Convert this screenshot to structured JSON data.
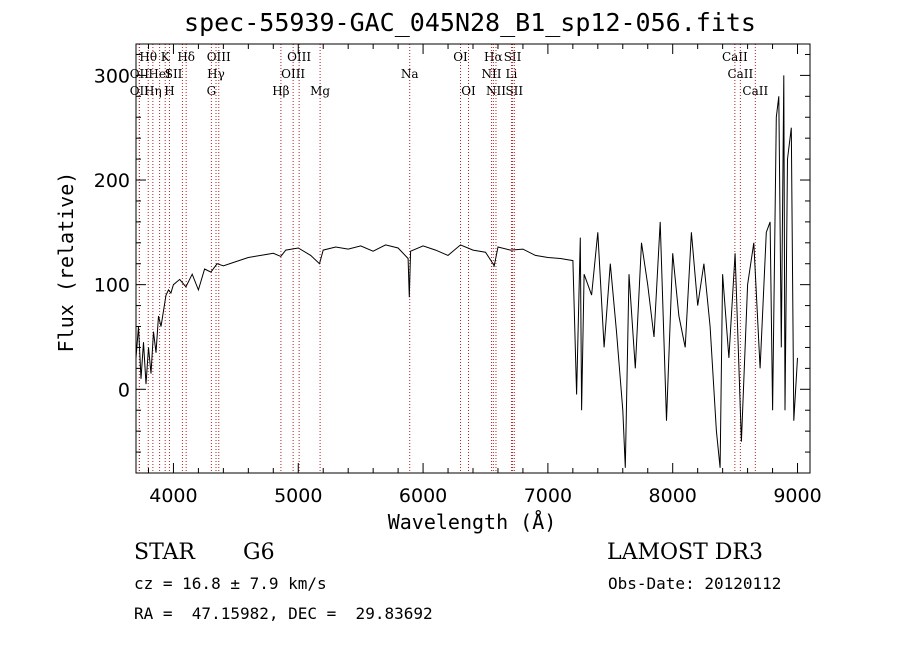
{
  "chart_data": {
    "type": "line",
    "title": "spec-55939-GAC_045N28_B1_sp12-056.fits",
    "xlabel": "Wavelength (Å)",
    "ylabel": "Flux (relative)",
    "xlim": [
      3700,
      9100
    ],
    "ylim": [
      -80,
      330
    ],
    "xticks": [
      {
        "value": 4000,
        "label": "4000"
      },
      {
        "value": 5000,
        "label": "5000"
      },
      {
        "value": 6000,
        "label": "6000"
      },
      {
        "value": 7000,
        "label": "7000"
      },
      {
        "value": 8000,
        "label": "8000"
      },
      {
        "value": 9000,
        "label": "9000"
      }
    ],
    "yticks": [
      {
        "value": 0,
        "label": "0"
      },
      {
        "value": 100,
        "label": "100"
      },
      {
        "value": 200,
        "label": "200"
      },
      {
        "value": 300,
        "label": "300"
      }
    ],
    "series": [
      {
        "name": "flux",
        "x": [
          3700,
          3720,
          3740,
          3760,
          3780,
          3800,
          3820,
          3840,
          3860,
          3880,
          3900,
          3920,
          3940,
          3960,
          3980,
          4000,
          4050,
          4100,
          4150,
          4200,
          4250,
          4300,
          4350,
          4400,
          4500,
          4600,
          4700,
          4800,
          4860,
          4900,
          5000,
          5100,
          5170,
          5200,
          5300,
          5400,
          5500,
          5600,
          5700,
          5800,
          5880,
          5890,
          5900,
          6000,
          6100,
          6200,
          6300,
          6400,
          6500,
          6560,
          6570,
          6600,
          6700,
          6800,
          6900,
          7000,
          7100,
          7200,
          7230,
          7260,
          7270,
          7290,
          7350,
          7400,
          7450,
          7500,
          7550,
          7600,
          7620,
          7650,
          7700,
          7750,
          7800,
          7850,
          7900,
          7950,
          8000,
          8050,
          8100,
          8150,
          8200,
          8250,
          8300,
          8350,
          8380,
          8400,
          8450,
          8500,
          8550,
          8600,
          8650,
          8700,
          8750,
          8780,
          8800,
          8830,
          8850,
          8870,
          8890,
          8900,
          8920,
          8950,
          8970,
          9000
        ],
        "y": [
          30,
          60,
          10,
          45,
          5,
          40,
          15,
          55,
          35,
          70,
          60,
          75,
          90,
          95,
          92,
          100,
          105,
          98,
          110,
          95,
          115,
          112,
          120,
          118,
          122,
          126,
          128,
          130,
          127,
          133,
          135,
          128,
          120,
          133,
          136,
          134,
          137,
          132,
          138,
          135,
          125,
          88,
          132,
          137,
          133,
          128,
          138,
          133,
          131,
          120,
          118,
          136,
          133,
          134,
          128,
          126,
          125,
          123,
          -5,
          145,
          -20,
          110,
          90,
          150,
          40,
          120,
          55,
          -20,
          -75,
          110,
          20,
          140,
          100,
          50,
          160,
          -30,
          130,
          70,
          40,
          150,
          80,
          120,
          60,
          -40,
          -75,
          110,
          30,
          130,
          -50,
          100,
          140,
          20,
          150,
          160,
          -20,
          260,
          280,
          40,
          300,
          -20,
          220,
          250,
          -30,
          30
        ]
      }
    ],
    "lines": [
      {
        "label": "Hθ",
        "x": 3798,
        "row": 0,
        "ha": "center"
      },
      {
        "label": "OII",
        "x": 3727,
        "row": 1,
        "ha": "center"
      },
      {
        "label": "OII",
        "x": 3727,
        "row": 2,
        "ha": "center"
      },
      {
        "label": "Hη",
        "x": 3835,
        "row": 2,
        "ha": "center"
      },
      {
        "label": "HeI",
        "x": 3889,
        "row": 1,
        "ha": "center"
      },
      {
        "label": "K",
        "x": 3934,
        "row": 0,
        "ha": "center"
      },
      {
        "label": "H",
        "x": 3968,
        "row": 2,
        "ha": "center"
      },
      {
        "label": "SII",
        "x": 4072,
        "row": 1,
        "ha": "right"
      },
      {
        "label": "Hδ",
        "x": 4102,
        "row": 0,
        "ha": "center"
      },
      {
        "label": "OIII",
        "x": 4363,
        "row": 0,
        "ha": "center"
      },
      {
        "label": "Hγ",
        "x": 4341,
        "row": 1,
        "ha": "center"
      },
      {
        "label": "G",
        "x": 4304,
        "row": 2,
        "ha": "center"
      },
      {
        "label": "Hβ",
        "x": 4861,
        "row": 2,
        "ha": "center"
      },
      {
        "label": "OIII",
        "x": 5007,
        "row": 0,
        "ha": "center"
      },
      {
        "label": "OIII",
        "x": 4959,
        "row": 1,
        "ha": "center"
      },
      {
        "label": "Mg",
        "x": 5175,
        "row": 2,
        "ha": "center"
      },
      {
        "label": "Na",
        "x": 5893,
        "row": 1,
        "ha": "center"
      },
      {
        "label": "OI",
        "x": 6300,
        "row": 0,
        "ha": "center"
      },
      {
        "label": "OI",
        "x": 6364,
        "row": 2,
        "ha": "center"
      },
      {
        "label": "Hα",
        "x": 6563,
        "row": 0,
        "ha": "center"
      },
      {
        "label": "NII",
        "x": 6548,
        "row": 1,
        "ha": "center"
      },
      {
        "label": "NII",
        "x": 6584,
        "row": 2,
        "ha": "center"
      },
      {
        "label": "SII",
        "x": 6717,
        "row": 0,
        "ha": "center"
      },
      {
        "label": "Li",
        "x": 6708,
        "row": 1,
        "ha": "center"
      },
      {
        "label": "SII",
        "x": 6731,
        "row": 2,
        "ha": "center"
      },
      {
        "label": "CaII",
        "x": 8498,
        "row": 0,
        "ha": "center"
      },
      {
        "label": "CaII",
        "x": 8542,
        "row": 1,
        "ha": "center"
      },
      {
        "label": "CaII",
        "x": 8662,
        "row": 2,
        "ha": "center"
      }
    ]
  },
  "info": {
    "class": "STAR",
    "subclass": "G6",
    "survey": "LAMOST DR3",
    "redshift": "cz = 16.8 ± 7.9 km/s",
    "obs_date": "Obs-Date: 20120112",
    "coords": "RA =  47.15982, DEC =  29.83692"
  },
  "colors": {
    "line_marker": "#b22222",
    "spectrum": "#000000"
  }
}
